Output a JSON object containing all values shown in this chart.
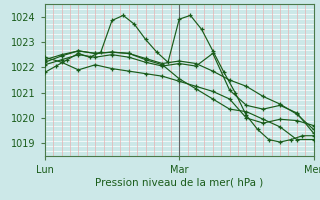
{
  "bg_color": "#cce8e8",
  "plot_bg_color": "#cce8e8",
  "grid_h_color": "#ffffff",
  "grid_v_color": "#e8b0b0",
  "line_color": "#1a5c1a",
  "marker_color": "#1a5c1a",
  "xlabel": "Pression niveau de la mer( hPa )",
  "xlabel_color": "#1a5c1a",
  "tick_color": "#1a5c1a",
  "ylim": [
    1018.5,
    1024.5
  ],
  "yticks": [
    1019,
    1020,
    1021,
    1022,
    1023,
    1024
  ],
  "xlim": [
    0,
    96
  ],
  "xtick_positions": [
    0,
    48,
    96
  ],
  "xtick_labels": [
    "Lun",
    "Mar",
    "Mer"
  ],
  "vline_x": 48,
  "lines": [
    [
      0,
      1021.8,
      4,
      1022.05,
      8,
      1022.3,
      12,
      1022.55,
      16,
      1022.4,
      20,
      1022.6,
      24,
      1023.85,
      28,
      1024.05,
      32,
      1023.7,
      36,
      1023.1,
      40,
      1022.6,
      44,
      1022.2,
      48,
      1023.9,
      52,
      1024.05,
      56,
      1023.5,
      60,
      1022.65,
      64,
      1021.8,
      68,
      1021.0,
      72,
      1020.1,
      76,
      1019.55,
      80,
      1019.15,
      84,
      1019.05,
      88,
      1019.15,
      92,
      1019.3,
      96,
      1019.3
    ],
    [
      0,
      1022.1,
      6,
      1022.3,
      12,
      1022.5,
      18,
      1022.4,
      24,
      1022.5,
      30,
      1022.4,
      36,
      1022.2,
      42,
      1022.05,
      48,
      1022.15,
      54,
      1022.05,
      60,
      1022.55,
      66,
      1021.1,
      72,
      1020.5,
      78,
      1020.35,
      84,
      1020.5,
      90,
      1020.2,
      96,
      1019.4
    ],
    [
      0,
      1022.2,
      6,
      1022.45,
      12,
      1022.65,
      18,
      1022.55,
      24,
      1022.6,
      30,
      1022.55,
      36,
      1022.35,
      42,
      1022.15,
      48,
      1022.25,
      54,
      1022.15,
      60,
      1021.85,
      66,
      1021.5,
      72,
      1021.25,
      78,
      1020.85,
      84,
      1020.55,
      90,
      1020.15,
      96,
      1019.55
    ],
    [
      0,
      1022.3,
      6,
      1022.5,
      12,
      1022.65,
      18,
      1022.55,
      24,
      1022.6,
      30,
      1022.55,
      36,
      1022.3,
      42,
      1022.1,
      48,
      1021.55,
      54,
      1021.15,
      60,
      1020.75,
      66,
      1020.35,
      72,
      1020.25,
      78,
      1019.95,
      84,
      1019.65,
      90,
      1019.15,
      96,
      1019.15
    ],
    [
      0,
      1022.4,
      6,
      1022.2,
      12,
      1021.9,
      18,
      1022.1,
      24,
      1021.95,
      30,
      1021.85,
      36,
      1021.75,
      42,
      1021.65,
      48,
      1021.45,
      54,
      1021.25,
      60,
      1021.05,
      66,
      1020.75,
      72,
      1020.0,
      78,
      1019.8,
      84,
      1019.95,
      90,
      1019.9,
      96,
      1019.7
    ]
  ]
}
